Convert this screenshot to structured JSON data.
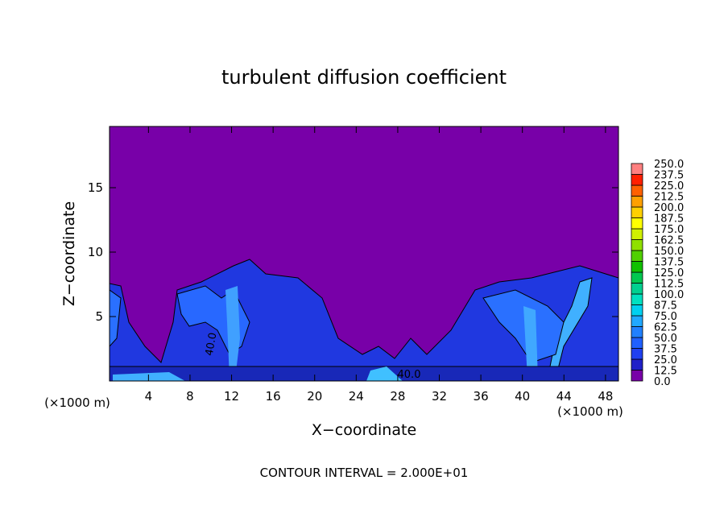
{
  "chart_data": {
    "type": "contour",
    "title": "turbulent diffusion coefficient",
    "xlabel": "X−coordinate",
    "ylabel": "Z−coordinate",
    "x_unit": "(×1000 m)",
    "y_unit": "(×1000 m)",
    "annotation": "CONTOUR INTERVAL = 2.000E+01",
    "contour_labels": [
      "40.0",
      "40.0"
    ],
    "xlim": [
      0.25,
      49.25
    ],
    "ylim": [
      0,
      19.75
    ],
    "xticks": [
      4,
      8,
      12,
      16,
      20,
      24,
      28,
      32,
      36,
      40,
      44,
      48
    ],
    "yticks": [
      5,
      10,
      15
    ],
    "background_color": "#7800a8",
    "colorbar": {
      "ticks": [
        {
          "value": 0,
          "label": "0.0"
        },
        12.5,
        {
          "value": 25,
          "label": "25.0"
        },
        37.5,
        {
          "value": 50,
          "label": "50.0"
        },
        62.5,
        {
          "value": 75,
          "label": "75.0"
        },
        87.5,
        {
          "value": 100,
          "label": "100.0"
        },
        112.5,
        {
          "value": 125,
          "label": "125.0"
        },
        137.5,
        {
          "value": 150,
          "label": "150.0"
        },
        162.5,
        {
          "value": 175,
          "label": "175.0"
        },
        187.5,
        {
          "value": 200,
          "label": "200.0"
        },
        212.5,
        {
          "value": 225,
          "label": "225.0"
        },
        237.5,
        {
          "value": 250,
          "label": "250.0"
        }
      ],
      "colors": [
        "#7800a8",
        "#2020c8",
        "#2040f0",
        "#2060ff",
        "#2080ff",
        "#20a8ff",
        "#00d0f0",
        "#00e0c0",
        "#00d090",
        "#00c850",
        "#10c000",
        "#50d000",
        "#90e000",
        "#d0f000",
        "#ffff00",
        "#ffd000",
        "#ffa000",
        "#ff6000",
        "#ff2000",
        "#ff8080"
      ]
    }
  }
}
